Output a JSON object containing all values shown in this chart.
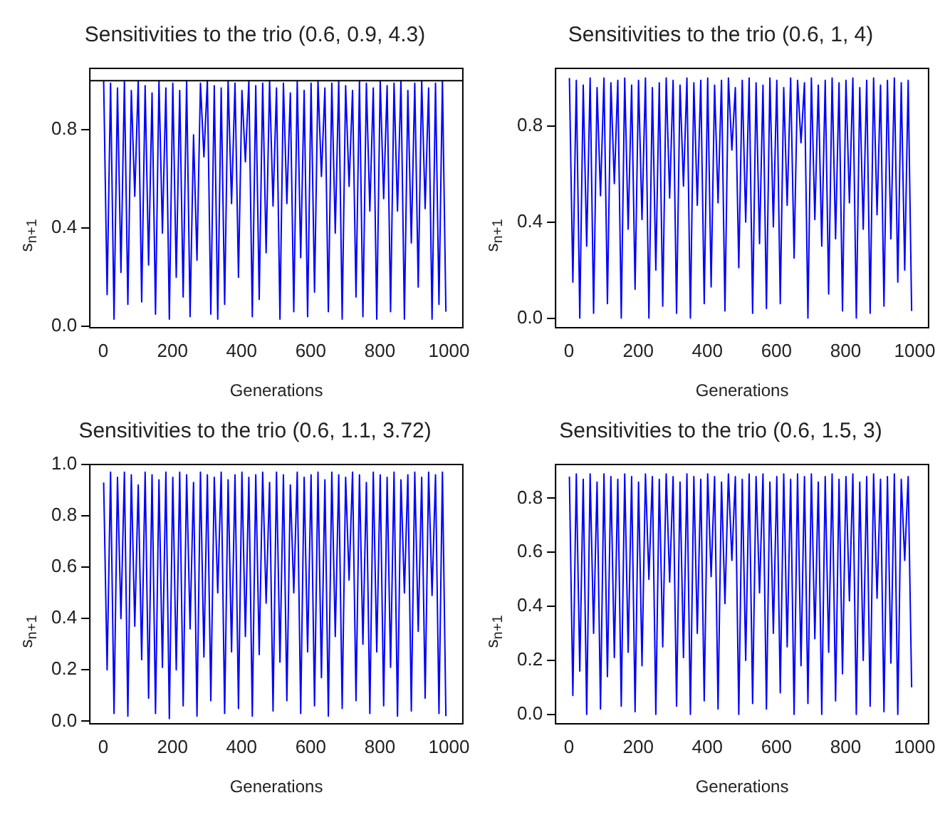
{
  "chart_data": [
    {
      "type": "line",
      "title": "Sensitivities to the trio (0.6, 0.9, 4.3)",
      "xlabel": "Generations",
      "ylabel": "s$_{n+1}$",
      "marker": "none",
      "xlim": [
        -39,
        1040
      ],
      "xticks": [
        0,
        200,
        400,
        600,
        800,
        1000
      ],
      "ylim": [
        -0.005,
        1.05
      ],
      "yticks": [
        {
          "value": 0,
          "label": "0.0"
        },
        {
          "value": 0.4,
          "label": "0.4"
        },
        {
          "value": 0.8,
          "label": "0.8"
        }
      ],
      "ref_lines": [
        {
          "axis": "y",
          "value": 1.0,
          "color": "#000000"
        }
      ],
      "x": [
        1,
        11,
        21,
        31,
        41,
        51,
        61,
        71,
        81,
        91,
        101,
        111,
        121,
        131,
        141,
        151,
        161,
        171,
        181,
        191,
        201,
        211,
        221,
        231,
        241,
        251,
        261,
        271,
        281,
        291,
        301,
        311,
        321,
        331,
        341,
        351,
        361,
        371,
        381,
        391,
        401,
        411,
        421,
        431,
        441,
        451,
        461,
        471,
        481,
        491,
        501,
        511,
        521,
        531,
        541,
        551,
        561,
        571,
        581,
        591,
        601,
        611,
        621,
        631,
        641,
        651,
        661,
        671,
        681,
        691,
        701,
        711,
        721,
        731,
        741,
        751,
        761,
        771,
        781,
        791,
        801,
        811,
        821,
        831,
        841,
        851,
        861,
        871,
        881,
        891,
        901,
        911,
        921,
        931,
        941,
        951,
        961,
        971,
        981,
        991
      ],
      "series": [
        {
          "color": "#0000ff",
          "values": [
            1.0,
            0.13,
            0.99,
            0.03,
            0.97,
            0.22,
            1.0,
            0.09,
            0.96,
            0.53,
            1.0,
            0.1,
            0.98,
            0.25,
            0.95,
            0.05,
            1.0,
            0.38,
            0.97,
            0.03,
            0.99,
            0.2,
            0.96,
            0.12,
            1.0,
            0.04,
            0.78,
            0.27,
            0.99,
            0.69,
            1.0,
            0.05,
            0.98,
            0.03,
            0.97,
            0.09,
            1.0,
            0.5,
            0.99,
            0.2,
            0.96,
            0.67,
            1.0,
            0.04,
            0.98,
            0.11,
            0.99,
            0.3,
            1.0,
            0.49,
            0.97,
            0.03,
            0.99,
            0.5,
            0.95,
            0.06,
            1.0,
            0.28,
            0.96,
            0.04,
            0.99,
            0.14,
            1.0,
            0.61,
            0.97,
            0.06,
            0.99,
            0.38,
            1.0,
            0.03,
            0.98,
            0.57,
            0.96,
            0.12,
            1.0,
            0.04,
            0.99,
            0.47,
            0.97,
            0.03,
            1.0,
            0.52,
            0.98,
            0.06,
            0.99,
            0.47,
            1.0,
            0.03,
            0.96,
            0.34,
            0.99,
            0.16,
            1.0,
            0.48,
            0.97,
            0.03,
            0.99,
            0.09,
            1.0,
            0.06
          ]
        }
      ]
    },
    {
      "type": "line",
      "title": "Sensitivities to the trio (0.6, 1, 4)",
      "xlabel": "Generations",
      "ylabel": "s$_{n+1}$",
      "marker": "none",
      "xlim": [
        -39,
        1040
      ],
      "xticks": [
        0,
        200,
        400,
        600,
        800,
        1000
      ],
      "ylim": [
        -0.04,
        1.04
      ],
      "yticks": [
        {
          "value": 0,
          "label": "0.0"
        },
        {
          "value": 0.4,
          "label": "0.4"
        },
        {
          "value": 0.8,
          "label": "0.8"
        }
      ],
      "x": [
        1,
        11,
        21,
        31,
        41,
        51,
        61,
        71,
        81,
        91,
        101,
        111,
        121,
        131,
        141,
        151,
        161,
        171,
        181,
        191,
        201,
        211,
        221,
        231,
        241,
        251,
        261,
        271,
        281,
        291,
        301,
        311,
        321,
        331,
        341,
        351,
        361,
        371,
        381,
        391,
        401,
        411,
        421,
        431,
        441,
        451,
        461,
        471,
        481,
        491,
        501,
        511,
        521,
        531,
        541,
        551,
        561,
        571,
        581,
        591,
        601,
        611,
        621,
        631,
        641,
        651,
        661,
        671,
        681,
        691,
        701,
        711,
        721,
        731,
        741,
        751,
        761,
        771,
        781,
        791,
        801,
        811,
        821,
        831,
        841,
        851,
        861,
        871,
        881,
        891,
        901,
        911,
        921,
        931,
        941,
        951,
        961,
        971,
        981,
        991
      ],
      "series": [
        {
          "color": "#0000ff",
          "values": [
            1.0,
            0.15,
            0.99,
            0.0,
            0.97,
            0.3,
            1.0,
            0.02,
            0.96,
            0.51,
            1.0,
            0.06,
            0.98,
            0.56,
            0.99,
            0.0,
            1.0,
            0.37,
            0.97,
            0.12,
            0.99,
            0.41,
            1.0,
            0.0,
            0.96,
            0.2,
            0.98,
            0.05,
            1.0,
            0.5,
            0.99,
            0.02,
            0.97,
            0.55,
            1.0,
            0.0,
            0.98,
            0.47,
            0.99,
            0.06,
            1.0,
            0.13,
            0.97,
            0.48,
            0.99,
            0.03,
            1.0,
            0.7,
            0.96,
            0.21,
            0.99,
            0.4,
            1.0,
            0.02,
            0.98,
            0.31,
            0.97,
            0.04,
            1.0,
            0.38,
            0.99,
            0.06,
            0.96,
            0.47,
            1.0,
            0.25,
            0.99,
            0.73,
            0.98,
            0.0,
            1.0,
            0.41,
            0.97,
            0.3,
            0.99,
            0.1,
            1.0,
            0.33,
            0.98,
            0.03,
            0.99,
            0.48,
            1.0,
            0.0,
            0.96,
            0.37,
            0.99,
            0.02,
            1.0,
            0.43,
            0.97,
            0.05,
            0.99,
            0.33,
            1.0,
            0.15,
            0.98,
            0.2,
            0.99,
            0.03
          ]
        }
      ]
    },
    {
      "type": "line",
      "title": "Sensitivities to the trio (0.6, 1.1, 3.72)",
      "xlabel": "Generations",
      "ylabel": "s$_{n+1}$",
      "marker": "none",
      "xlim": [
        -39,
        1040
      ],
      "xticks": [
        0,
        200,
        400,
        600,
        800,
        1000
      ],
      "ylim": [
        -0.01,
        1.0
      ],
      "yticks": [
        {
          "value": 0,
          "label": "0.0"
        },
        {
          "value": 0.2,
          "label": "0.2"
        },
        {
          "value": 0.4,
          "label": "0.4"
        },
        {
          "value": 0.6,
          "label": "0.6"
        },
        {
          "value": 0.8,
          "label": "0.8"
        },
        {
          "value": 1.0,
          "label": "1.0"
        }
      ],
      "x": [
        1,
        11,
        21,
        31,
        41,
        51,
        61,
        71,
        81,
        91,
        101,
        111,
        121,
        131,
        141,
        151,
        161,
        171,
        181,
        191,
        201,
        211,
        221,
        231,
        241,
        251,
        261,
        271,
        281,
        291,
        301,
        311,
        321,
        331,
        341,
        351,
        361,
        371,
        381,
        391,
        401,
        411,
        421,
        431,
        441,
        451,
        461,
        471,
        481,
        491,
        501,
        511,
        521,
        531,
        541,
        551,
        561,
        571,
        581,
        591,
        601,
        611,
        621,
        631,
        641,
        651,
        661,
        671,
        681,
        691,
        701,
        711,
        721,
        731,
        741,
        751,
        761,
        771,
        781,
        791,
        801,
        811,
        821,
        831,
        841,
        851,
        861,
        871,
        881,
        891,
        901,
        911,
        921,
        931,
        941,
        951,
        961,
        971,
        981,
        991
      ],
      "series": [
        {
          "color": "#0000ff",
          "values": [
            0.93,
            0.2,
            0.97,
            0.03,
            0.95,
            0.4,
            0.97,
            0.02,
            0.96,
            0.37,
            0.92,
            0.24,
            0.97,
            0.09,
            0.96,
            0.03,
            0.94,
            0.21,
            0.97,
            0.01,
            0.95,
            0.2,
            0.97,
            0.06,
            0.96,
            0.36,
            0.93,
            0.02,
            0.97,
            0.25,
            0.96,
            0.08,
            0.95,
            0.5,
            0.97,
            0.03,
            0.94,
            0.27,
            0.96,
            0.05,
            0.97,
            0.33,
            0.95,
            0.02,
            0.96,
            0.26,
            0.97,
            0.46,
            0.93,
            0.04,
            0.97,
            0.23,
            0.96,
            0.08,
            0.92,
            0.5,
            0.97,
            0.03,
            0.95,
            0.27,
            0.96,
            0.06,
            0.97,
            0.17,
            0.94,
            0.02,
            0.97,
            0.33,
            0.96,
            0.05,
            0.95,
            0.55,
            0.97,
            0.08,
            0.96,
            0.3,
            0.93,
            0.03,
            0.97,
            0.27,
            0.96,
            0.06,
            0.95,
            0.21,
            0.97,
            0.02,
            0.94,
            0.5,
            0.96,
            0.04,
            0.97,
            0.35,
            0.95,
            0.09,
            0.97,
            0.49,
            0.96,
            0.03,
            0.97,
            0.02
          ]
        }
      ]
    },
    {
      "type": "line",
      "title": "Sensitivities to the trio (0.6, 1.5, 3)",
      "xlabel": "Generations",
      "ylabel": "s$_{n+1}$",
      "marker": "none",
      "xlim": [
        -39,
        1040
      ],
      "xticks": [
        0,
        200,
        400,
        600,
        800,
        1000
      ],
      "ylim": [
        -0.035,
        0.925
      ],
      "yticks": [
        {
          "value": 0,
          "label": "0.0"
        },
        {
          "value": 0.2,
          "label": "0.2"
        },
        {
          "value": 0.4,
          "label": "0.4"
        },
        {
          "value": 0.6,
          "label": "0.6"
        },
        {
          "value": 0.8,
          "label": "0.8"
        }
      ],
      "x": [
        1,
        11,
        21,
        31,
        41,
        51,
        61,
        71,
        81,
        91,
        101,
        111,
        121,
        131,
        141,
        151,
        161,
        171,
        181,
        191,
        201,
        211,
        221,
        231,
        241,
        251,
        261,
        271,
        281,
        291,
        301,
        311,
        321,
        331,
        341,
        351,
        361,
        371,
        381,
        391,
        401,
        411,
        421,
        431,
        441,
        451,
        461,
        471,
        481,
        491,
        501,
        511,
        521,
        531,
        541,
        551,
        561,
        571,
        581,
        591,
        601,
        611,
        621,
        631,
        641,
        651,
        661,
        671,
        681,
        691,
        701,
        711,
        721,
        731,
        741,
        751,
        761,
        771,
        781,
        791,
        801,
        811,
        821,
        831,
        841,
        851,
        861,
        871,
        881,
        891,
        901,
        911,
        921,
        931,
        941,
        951,
        961,
        971,
        981,
        991
      ],
      "series": [
        {
          "color": "#0000ff",
          "values": [
            0.88,
            0.07,
            0.89,
            0.16,
            0.87,
            0.0,
            0.89,
            0.3,
            0.86,
            0.02,
            0.89,
            0.14,
            0.88,
            0.21,
            0.87,
            0.03,
            0.89,
            0.23,
            0.88,
            0.01,
            0.86,
            0.18,
            0.89,
            0.5,
            0.88,
            0.0,
            0.87,
            0.25,
            0.89,
            0.49,
            0.88,
            0.03,
            0.86,
            0.21,
            0.89,
            0.0,
            0.88,
            0.3,
            0.87,
            0.05,
            0.89,
            0.51,
            0.88,
            0.02,
            0.86,
            0.41,
            0.89,
            0.57,
            0.88,
            0.0,
            0.87,
            0.2,
            0.89,
            0.04,
            0.88,
            0.45,
            0.89,
            0.02,
            0.86,
            0.3,
            0.88,
            0.08,
            0.89,
            0.25,
            0.87,
            0.0,
            0.89,
            0.18,
            0.88,
            0.04,
            0.89,
            0.28,
            0.86,
            0.0,
            0.88,
            0.23,
            0.89,
            0.05,
            0.87,
            0.15,
            0.88,
            0.42,
            0.89,
            0.0,
            0.86,
            0.2,
            0.88,
            0.03,
            0.89,
            0.43,
            0.87,
            0.01,
            0.88,
            0.19,
            0.89,
            0.0,
            0.87,
            0.57,
            0.88,
            0.1
          ]
        }
      ]
    }
  ]
}
